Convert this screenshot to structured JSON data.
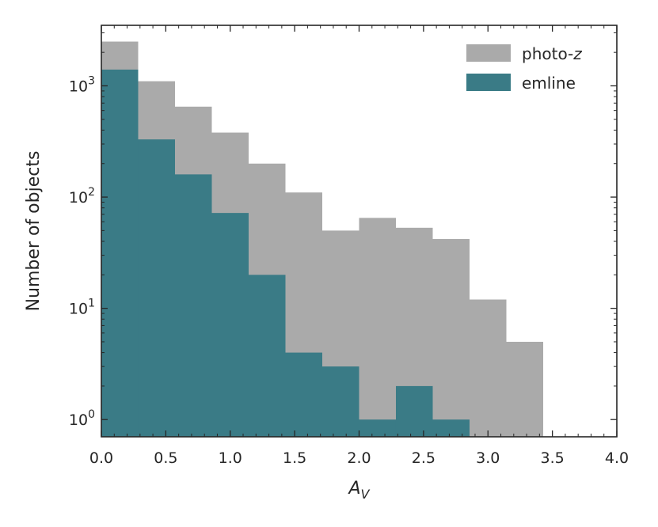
{
  "chart_data": {
    "type": "bar",
    "subtype": "histogram",
    "xlabel": "A",
    "xlabel_subscript": "V",
    "ylabel": "Number of objects",
    "xlim": [
      0.0,
      4.0
    ],
    "ylim": [
      0.7,
      3500
    ],
    "yscale": "log",
    "grid": false,
    "legend_position": "top-right",
    "bin_edges": [
      0.0,
      0.2857,
      0.5714,
      0.8571,
      1.1429,
      1.4286,
      1.7143,
      2.0,
      2.2857,
      2.5714,
      2.8571,
      3.1429,
      3.4286
    ],
    "x_ticks": [
      0.0,
      0.5,
      1.0,
      1.5,
      2.0,
      2.5,
      3.0,
      3.5,
      4.0
    ],
    "x_tick_labels": [
      "0.0",
      "0.5",
      "1.0",
      "1.5",
      "2.0",
      "2.5",
      "3.0",
      "3.5",
      "4.0"
    ],
    "y_ticks": [
      1,
      10,
      100,
      1000
    ],
    "y_tick_labels": [
      {
        "base": "10",
        "exp": "0"
      },
      {
        "base": "10",
        "exp": "1"
      },
      {
        "base": "10",
        "exp": "2"
      },
      {
        "base": "10",
        "exp": "3"
      }
    ],
    "series": [
      {
        "name": "photo-",
        "name_italic": "z",
        "color": "#aaaaaa",
        "values": [
          2500,
          1100,
          650,
          380,
          200,
          110,
          50,
          65,
          53,
          42,
          12,
          5
        ]
      },
      {
        "name": "emline",
        "name_italic": "",
        "color": "#3a7b86",
        "values": [
          1400,
          330,
          160,
          72,
          20,
          4,
          3,
          1,
          2,
          1,
          0,
          0
        ]
      }
    ]
  }
}
